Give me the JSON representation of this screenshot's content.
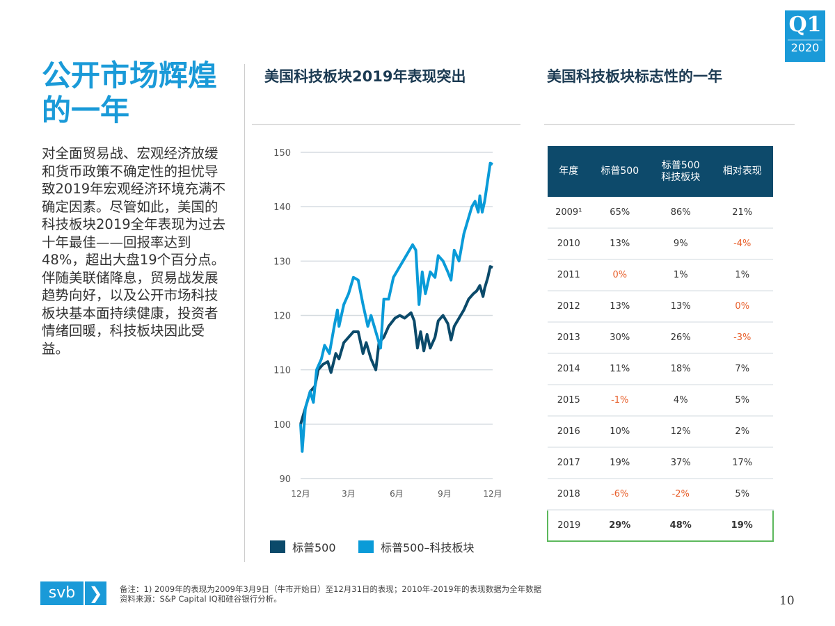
{
  "title": "公开市场辉煌的一年",
  "body": "对全面贸易战、宏观经济放缓和货币政策不确定性的担忧导致2019年宏观经济环境充满不确定因素。尽管如此，美国的科技板块2019全年表现为过去十年最佳——回报率达到48%，超出大盘19个百分点。伴随美联储降息，贸易战发展趋势向好，以及公开市场科技板块基本面持续健康，投资者情绪回暖，科技板块因此受益。",
  "badge": {
    "quarter": "Q1",
    "year": "2020"
  },
  "chart_title": "美国科技板块2019年表现突出",
  "table_title": "美国科技板块标志性的一年",
  "colors": {
    "accent": "#1a9ad8",
    "sp500": "#0b4a6a",
    "tech": "#0a9bd8",
    "negative": "#e8602c",
    "highlight": "#5cb85c"
  },
  "chart_data": {
    "type": "line",
    "title": "美国科技板块2019年表现突出",
    "xlabel": "",
    "ylabel": "",
    "ylim": [
      90,
      150
    ],
    "yticks": [
      90,
      100,
      110,
      120,
      130,
      140,
      150
    ],
    "xlim": [
      0,
      12
    ],
    "xticks": [
      {
        "x": 0,
        "label": "12月"
      },
      {
        "x": 3,
        "label": "3月"
      },
      {
        "x": 6,
        "label": "6月"
      },
      {
        "x": 9,
        "label": "9月"
      },
      {
        "x": 12,
        "label": "12月"
      }
    ],
    "grid": true,
    "legend": "bottom",
    "series": [
      {
        "name": "标普500",
        "color": "#0b4a6a",
        "points": [
          [
            0,
            100
          ],
          [
            0.3,
            103
          ],
          [
            0.6,
            106
          ],
          [
            0.9,
            107
          ],
          [
            1.1,
            110
          ],
          [
            1.4,
            111
          ],
          [
            1.7,
            111.5
          ],
          [
            1.9,
            109.5
          ],
          [
            2.2,
            113
          ],
          [
            2.4,
            112
          ],
          [
            2.7,
            115
          ],
          [
            3.0,
            116
          ],
          [
            3.3,
            117
          ],
          [
            3.6,
            117
          ],
          [
            3.9,
            113
          ],
          [
            4.1,
            115
          ],
          [
            4.4,
            112
          ],
          [
            4.7,
            110
          ],
          [
            4.9,
            115
          ],
          [
            5.2,
            116
          ],
          [
            5.5,
            118
          ],
          [
            5.9,
            119.5
          ],
          [
            6.2,
            120
          ],
          [
            6.5,
            119.5
          ],
          [
            6.9,
            120.5
          ],
          [
            7.1,
            119
          ],
          [
            7.3,
            114
          ],
          [
            7.5,
            117
          ],
          [
            7.7,
            113.5
          ],
          [
            7.9,
            116.5
          ],
          [
            8.1,
            114
          ],
          [
            8.4,
            116
          ],
          [
            8.6,
            119
          ],
          [
            8.9,
            120
          ],
          [
            9.2,
            118.5
          ],
          [
            9.4,
            115.5
          ],
          [
            9.6,
            118
          ],
          [
            9.9,
            119.5
          ],
          [
            10.2,
            121
          ],
          [
            10.5,
            123
          ],
          [
            10.8,
            124
          ],
          [
            11.0,
            124.5
          ],
          [
            11.2,
            125.5
          ],
          [
            11.4,
            123.5
          ],
          [
            11.5,
            125
          ],
          [
            11.7,
            127
          ],
          [
            11.85,
            129
          ],
          [
            12,
            128.8
          ]
        ]
      },
      {
        "name": "标普500–科技板块",
        "color": "#0a9bd8",
        "points": [
          [
            0,
            100
          ],
          [
            0.1,
            95
          ],
          [
            0.3,
            103
          ],
          [
            0.6,
            106
          ],
          [
            0.8,
            104
          ],
          [
            1.0,
            110
          ],
          [
            1.3,
            112
          ],
          [
            1.5,
            114.5
          ],
          [
            1.8,
            113
          ],
          [
            2.1,
            118
          ],
          [
            2.3,
            121
          ],
          [
            2.4,
            118
          ],
          [
            2.7,
            122
          ],
          [
            3.0,
            124
          ],
          [
            3.3,
            127
          ],
          [
            3.6,
            126.5
          ],
          [
            3.9,
            122
          ],
          [
            4.2,
            118
          ],
          [
            4.4,
            120
          ],
          [
            4.8,
            116
          ],
          [
            5.0,
            114
          ],
          [
            5.2,
            123
          ],
          [
            5.5,
            123
          ],
          [
            5.8,
            127
          ],
          [
            6.2,
            129
          ],
          [
            6.6,
            131
          ],
          [
            7.0,
            133
          ],
          [
            7.2,
            132
          ],
          [
            7.4,
            122
          ],
          [
            7.6,
            128
          ],
          [
            7.8,
            124
          ],
          [
            8.1,
            128
          ],
          [
            8.4,
            127
          ],
          [
            8.6,
            131
          ],
          [
            8.9,
            130
          ],
          [
            9.2,
            128
          ],
          [
            9.4,
            126.5
          ],
          [
            9.6,
            132
          ],
          [
            9.9,
            130
          ],
          [
            10.2,
            135
          ],
          [
            10.4,
            137
          ],
          [
            10.7,
            140
          ],
          [
            10.9,
            141
          ],
          [
            11.1,
            139
          ],
          [
            11.2,
            142
          ],
          [
            11.35,
            139
          ],
          [
            11.5,
            141
          ],
          [
            11.7,
            145
          ],
          [
            11.85,
            148
          ],
          [
            12,
            147.8
          ]
        ]
      }
    ]
  },
  "table": {
    "headers": [
      "年度",
      "标普500",
      "标普500\n科技板块",
      "相对表现"
    ],
    "rows": [
      {
        "year": "2009¹",
        "sp": "65%",
        "tech": "86%",
        "rel": "21%"
      },
      {
        "year": "2010",
        "sp": "13%",
        "tech": "9%",
        "rel": "-4%"
      },
      {
        "year": "2011",
        "sp": "0%",
        "tech": "1%",
        "rel": "1%"
      },
      {
        "year": "2012",
        "sp": "13%",
        "tech": "13%",
        "rel": "0%"
      },
      {
        "year": "2013",
        "sp": "30%",
        "tech": "26%",
        "rel": "-3%"
      },
      {
        "year": "2014",
        "sp": "11%",
        "tech": "18%",
        "rel": "7%"
      },
      {
        "year": "2015",
        "sp": "-1%",
        "tech": "4%",
        "rel": "5%"
      },
      {
        "year": "2016",
        "sp": "10%",
        "tech": "12%",
        "rel": "2%"
      },
      {
        "year": "2017",
        "sp": "19%",
        "tech": "37%",
        "rel": "17%"
      },
      {
        "year": "2018",
        "sp": "-6%",
        "tech": "-2%",
        "rel": "5%"
      },
      {
        "year": "2019",
        "sp": "29%",
        "tech": "48%",
        "rel": "19%"
      }
    ]
  },
  "logo": {
    "text": "svb",
    "chevron": "❯"
  },
  "notes": [
    "备注：1) 2009年的表现为2009年3月9日（牛市开始日）至12月31日的表现；2010年-2019年的表现数据为全年数据",
    "资料来源：S&P Capital IQ和硅谷银行分析。"
  ],
  "page_number": "10"
}
